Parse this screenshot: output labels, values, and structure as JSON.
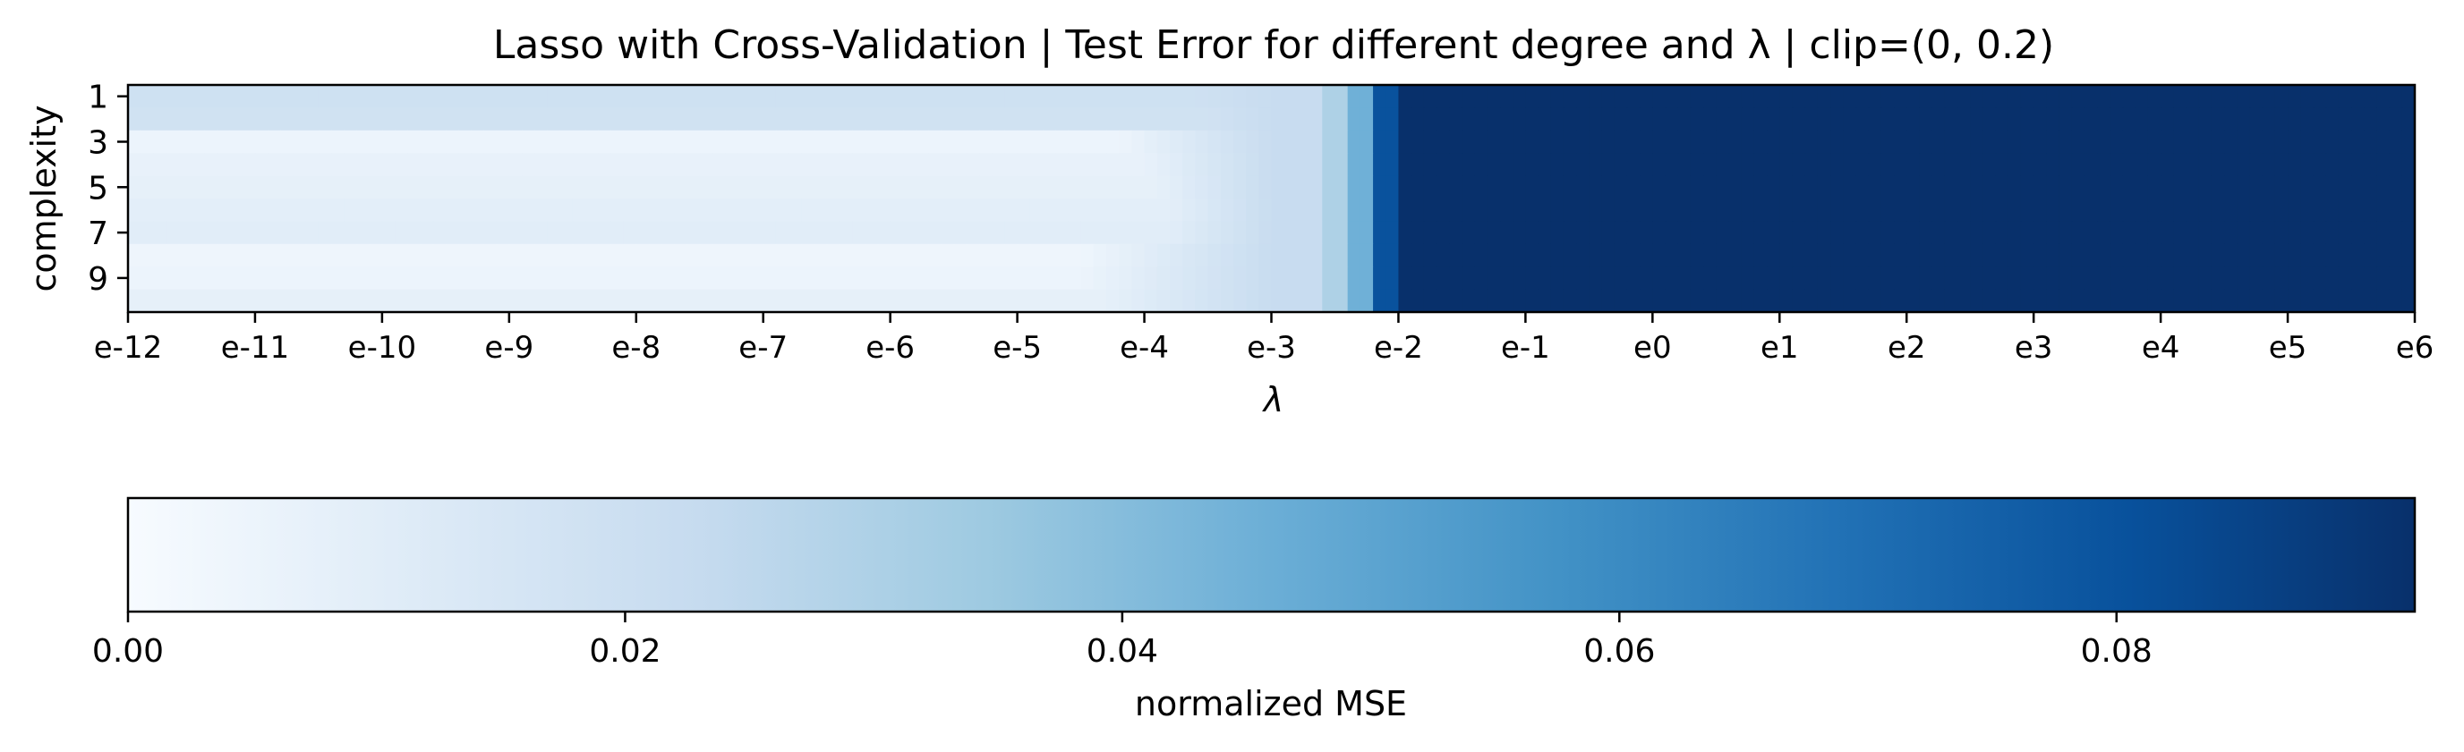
{
  "chart_data": [
    {
      "type": "heatmap",
      "title": "Lasso with Cross-Validation | Test Error for different degree and λ | clip=(0, 0.2)",
      "xlabel": "λ",
      "ylabel": "complexity",
      "x_tick_labels": [
        "e-12",
        "e-11",
        "e-10",
        "e-9",
        "e-8",
        "e-7",
        "e-6",
        "e-5",
        "e-4",
        "e-3",
        "e-2",
        "e-1",
        "e0",
        "e1",
        "e2",
        "e3",
        "e4",
        "e5",
        "e6"
      ],
      "x_range_log10": [
        -12,
        6
      ],
      "y_rows": [
        1,
        2,
        3,
        4,
        5,
        6,
        7,
        8,
        9,
        10
      ],
      "y_tick_labels": [
        "1",
        "3",
        "5",
        "7",
        "9"
      ],
      "colormap": "Blues",
      "color_range": [
        0,
        0.092
      ],
      "saturation_threshold_log10": -2,
      "row_profiles": [
        {
          "row": 1,
          "base": 0.019,
          "knee_log10": -3.6
        },
        {
          "row": 2,
          "base": 0.018,
          "knee_log10": -3.5
        },
        {
          "row": 3,
          "base": 0.005,
          "knee_log10": -4.2
        },
        {
          "row": 4,
          "base": 0.007,
          "knee_log10": -4.0
        },
        {
          "row": 5,
          "base": 0.008,
          "knee_log10": -3.9
        },
        {
          "row": 6,
          "base": 0.009,
          "knee_log10": -3.8
        },
        {
          "row": 7,
          "base": 0.01,
          "knee_log10": -3.8
        },
        {
          "row": 8,
          "base": 0.004,
          "knee_log10": -4.5
        },
        {
          "row": 9,
          "base": 0.005,
          "knee_log10": -4.5
        },
        {
          "row": 10,
          "base": 0.008,
          "knee_log10": -4.3
        }
      ],
      "transition_values": [
        {
          "x_log10": -3.0,
          "value": 0.022
        },
        {
          "x_log10": -2.6,
          "value": 0.03
        },
        {
          "x_log10": -2.4,
          "value": 0.045
        },
        {
          "x_log10": -2.2,
          "value": 0.08
        },
        {
          "x_log10": -2.0,
          "value": 0.092
        }
      ]
    },
    {
      "type": "colorbar",
      "label": "normalized MSE",
      "range": [
        0,
        0.092
      ],
      "tick_values": [
        0.0,
        0.02,
        0.04,
        0.06,
        0.08
      ],
      "tick_labels": [
        "0.00",
        "0.02",
        "0.04",
        "0.06",
        "0.08"
      ],
      "colormap": "Blues"
    }
  ]
}
